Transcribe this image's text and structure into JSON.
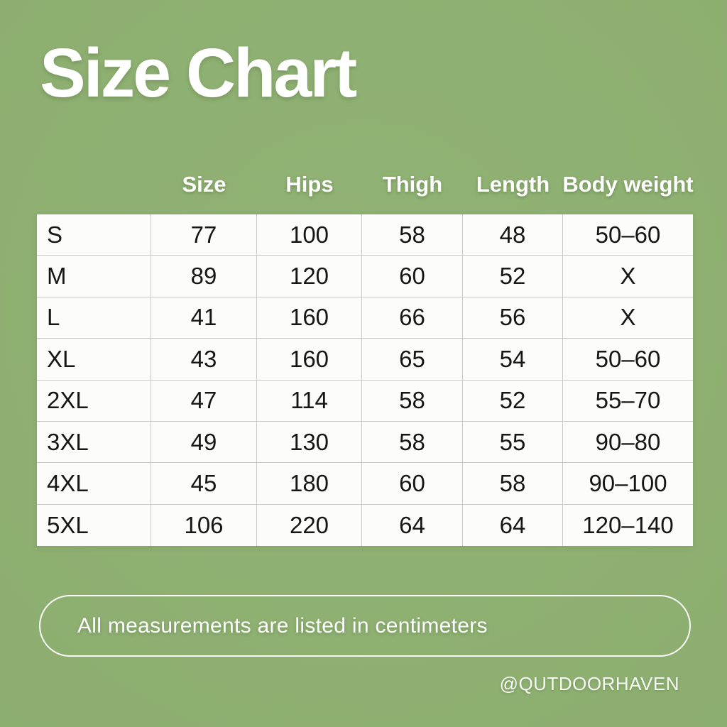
{
  "page": {
    "background_color": "#8CAF70",
    "title": "Size Chart",
    "note": "All measurements are listed in centimeters",
    "watermark": "@QUTDOORHAVEN",
    "title_color": "#FFFFFF",
    "table_text_color": "#161616",
    "gridline_color": "#C9C9C9"
  },
  "chart_data": {
    "type": "table",
    "title": "Size Chart",
    "units": "centimeters",
    "columns": [
      "",
      "Size",
      "Hips",
      "Thigh",
      "Length",
      "Body weight"
    ],
    "rows": [
      [
        "S",
        "77",
        "100",
        "58",
        "48",
        "50–60"
      ],
      [
        "M",
        "89",
        "120",
        "60",
        "52",
        "X"
      ],
      [
        "L",
        "41",
        "160",
        "66",
        "56",
        "X"
      ],
      [
        "XL",
        "43",
        "160",
        "65",
        "54",
        "50–60"
      ],
      [
        "2XL",
        "47",
        "114",
        "58",
        "52",
        "55–70"
      ],
      [
        "3XL",
        "49",
        "130",
        "58",
        "55",
        "90–80"
      ],
      [
        "4XL",
        "45",
        "180",
        "60",
        "58",
        "90–100"
      ],
      [
        "5XL",
        "106",
        "220",
        "64",
        "64",
        "120–140"
      ]
    ],
    "legend_note": "All measurements are listed in centimeters"
  }
}
